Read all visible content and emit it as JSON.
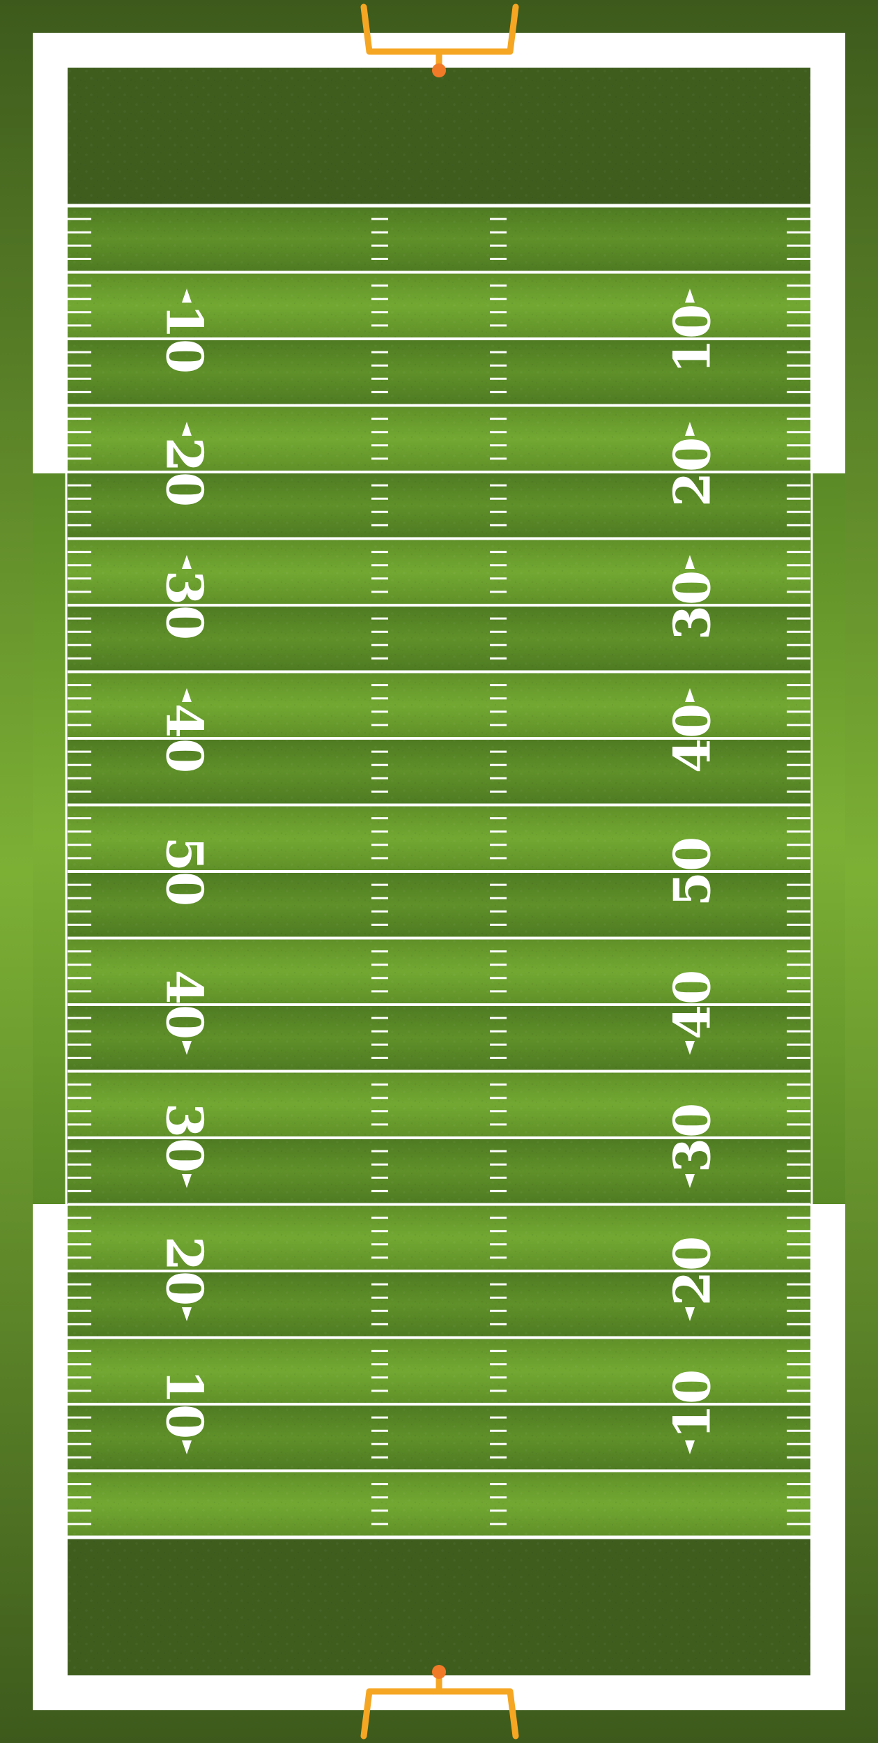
{
  "field": {
    "yard_numbers": [
      "10",
      "20",
      "30",
      "40",
      "50",
      "40",
      "30",
      "20",
      "10"
    ],
    "colors": {
      "outer_background": "#3d5a1c",
      "outer_center": "#7cb035",
      "boundary_white": "#ffffff",
      "endzone": "#3f5e1e",
      "stripe_light": "#6b9b2c",
      "stripe_dark": "#5a8628",
      "lines": "#ffffff",
      "goalpost": "#f5a623",
      "ball": "#f07a28"
    },
    "icons": {
      "top_goalpost": "goalpost-icon",
      "bottom_goalpost": "goalpost-icon",
      "top_ball": "football-icon",
      "bottom_ball": "football-icon",
      "direction_marker": "triangle-arrow-icon"
    }
  }
}
